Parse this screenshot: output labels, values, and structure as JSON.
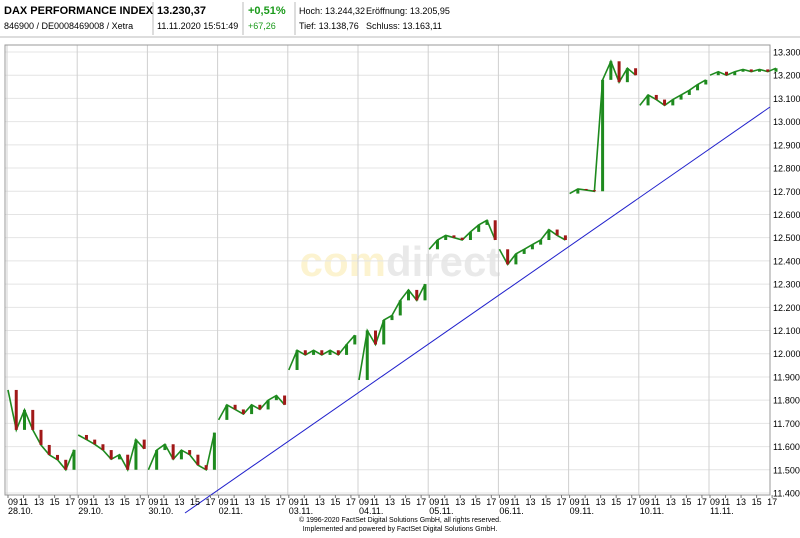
{
  "header": {
    "name": "DAX PERFORMANCE INDEX",
    "ids": "846900 / DE0008469008 / Xetra",
    "price": "13.230,37",
    "time": "11.11.2020 15:51:49",
    "change_pct": "+0,51%",
    "change_abs": "+67,26",
    "high": "Hoch: 13.244,32",
    "low": "Tief: 13.138,76",
    "open": "Eröffnung: 13.205,95",
    "close": "Schluss: 13.163,11"
  },
  "chart_data": {
    "type": "line",
    "color": "#1e8a1e",
    "grid": true,
    "watermark": [
      "com",
      "direct"
    ],
    "ylim": [
      11400,
      13300
    ],
    "yticks": [
      {
        "value": 11400,
        "label": "11.400"
      },
      {
        "value": 11500,
        "label": "11.500"
      },
      {
        "value": 11600,
        "label": "11.600"
      },
      {
        "value": 11700,
        "label": "11.700"
      },
      {
        "value": 11800,
        "label": "11.800"
      },
      {
        "value": 11900,
        "label": "11.900"
      },
      {
        "value": 12000,
        "label": "12.000"
      },
      {
        "value": 12100,
        "label": "12.100"
      },
      {
        "value": 12200,
        "label": "12.200"
      },
      {
        "value": 12300,
        "label": "12.300"
      },
      {
        "value": 12400,
        "label": "12.400"
      },
      {
        "value": 12500,
        "label": "12.500"
      },
      {
        "value": 12600,
        "label": "12.600"
      },
      {
        "value": 12700,
        "label": "12.700"
      },
      {
        "value": 12800,
        "label": "12.800"
      },
      {
        "value": 12900,
        "label": "12.900"
      },
      {
        "value": 13000,
        "label": "13.000"
      },
      {
        "value": 13100,
        "label": "13.100"
      },
      {
        "value": 13200,
        "label": "13.200"
      },
      {
        "value": 13300,
        "label": "13.300"
      }
    ],
    "hour_ticks": [
      {
        "value": 9,
        "label": "09"
      },
      {
        "value": 11,
        "label": "11"
      },
      {
        "value": 13,
        "label": "13"
      },
      {
        "value": 15,
        "label": "15"
      },
      {
        "value": 17,
        "label": "17"
      }
    ],
    "days": [
      {
        "label": "28.10.",
        "values": [
          11844,
          11672,
          11758,
          11672,
          11607,
          11564,
          11543,
          11500,
          11586
        ]
      },
      {
        "label": "29.10.",
        "values": [
          11650,
          11630,
          11610,
          11585,
          11545,
          11565,
          11500,
          11630,
          11590
        ]
      },
      {
        "label": "30.10.",
        "values": [
          11500,
          11585,
          11610,
          11545,
          11585,
          11565,
          11520,
          11500,
          11660
        ]
      },
      {
        "label": "02.11.",
        "values": [
          11715,
          11780,
          11760,
          11740,
          11780,
          11760,
          11800,
          11820,
          11780
        ]
      },
      {
        "label": "03.11.",
        "values": [
          11930,
          12015,
          11995,
          12015,
          11995,
          12015,
          11995,
          12040,
          12080
        ]
      },
      {
        "label": "04.11.",
        "values": [
          11887,
          12100,
          12040,
          12145,
          12165,
          12230,
          12275,
          12230,
          12300
        ]
      },
      {
        "label": "05.11.",
        "values": [
          12450,
          12490,
          12510,
          12500,
          12490,
          12525,
          12555,
          12575,
          12490
        ]
      },
      {
        "label": "06.11.",
        "values": [
          12450,
          12385,
          12430,
          12450,
          12470,
          12490,
          12535,
          12510,
          12490
        ]
      },
      {
        "label": "09.11.",
        "values": [
          12690,
          12710,
          12705,
          12700,
          13180,
          13260,
          13170,
          13230,
          13200
        ]
      },
      {
        "label": "10.11.",
        "values": [
          13070,
          13115,
          13095,
          13070,
          13095,
          13115,
          13135,
          13160,
          13180
        ]
      },
      {
        "label": "11.11.",
        "values": [
          13200,
          13215,
          13200,
          13215,
          13225,
          13215,
          13225,
          13215,
          13230
        ]
      }
    ]
  },
  "footer": {
    "line1": "© 1996-2020 FactSet Digital Solutions GmbH, all rights reserved.",
    "line2": "Implemented and powered by FactSet Digital Solutions GmbH."
  }
}
